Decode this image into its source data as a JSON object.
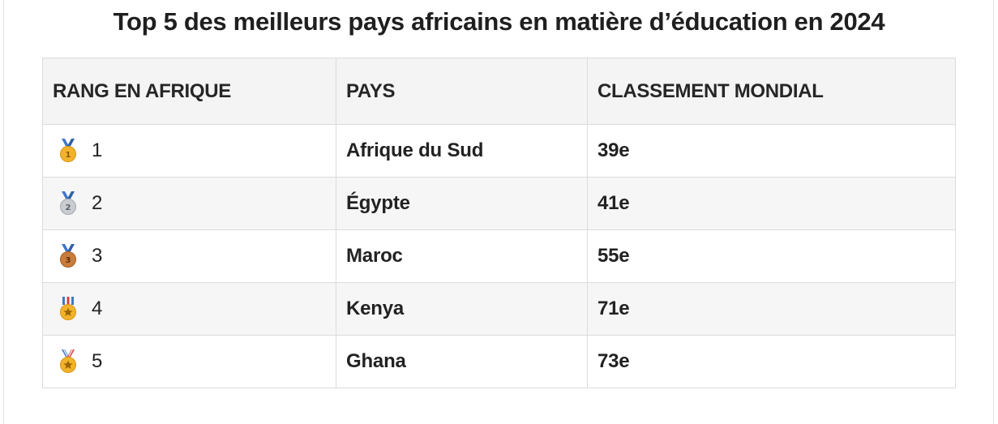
{
  "title": "Top 5 des meilleurs pays africains en matière d’éducation en 2024",
  "table": {
    "headers": [
      "RANG EN AFRIQUE",
      "PAYS",
      "CLASSEMENT MONDIAL"
    ],
    "rows": [
      {
        "rank": "1",
        "medal": "gold-medal-icon",
        "country": "Afrique du Sud",
        "world": "39e"
      },
      {
        "rank": "2",
        "medal": "silver-medal-icon",
        "country": "Égypte",
        "world": "41e"
      },
      {
        "rank": "3",
        "medal": "bronze-medal-icon",
        "country": "Maroc",
        "world": "55e"
      },
      {
        "rank": "4",
        "medal": "military-medal-icon",
        "country": "Kenya",
        "world": "71e"
      },
      {
        "rank": "5",
        "medal": "military-medal-icon",
        "country": "Ghana",
        "world": "73e"
      }
    ]
  },
  "colors": {
    "gold": "#f2b32a",
    "silver": "#c9ccd1",
    "bronze": "#c97c3c",
    "ribbon_blue": "#3f77c9",
    "ribbon_red": "#d9403a"
  }
}
